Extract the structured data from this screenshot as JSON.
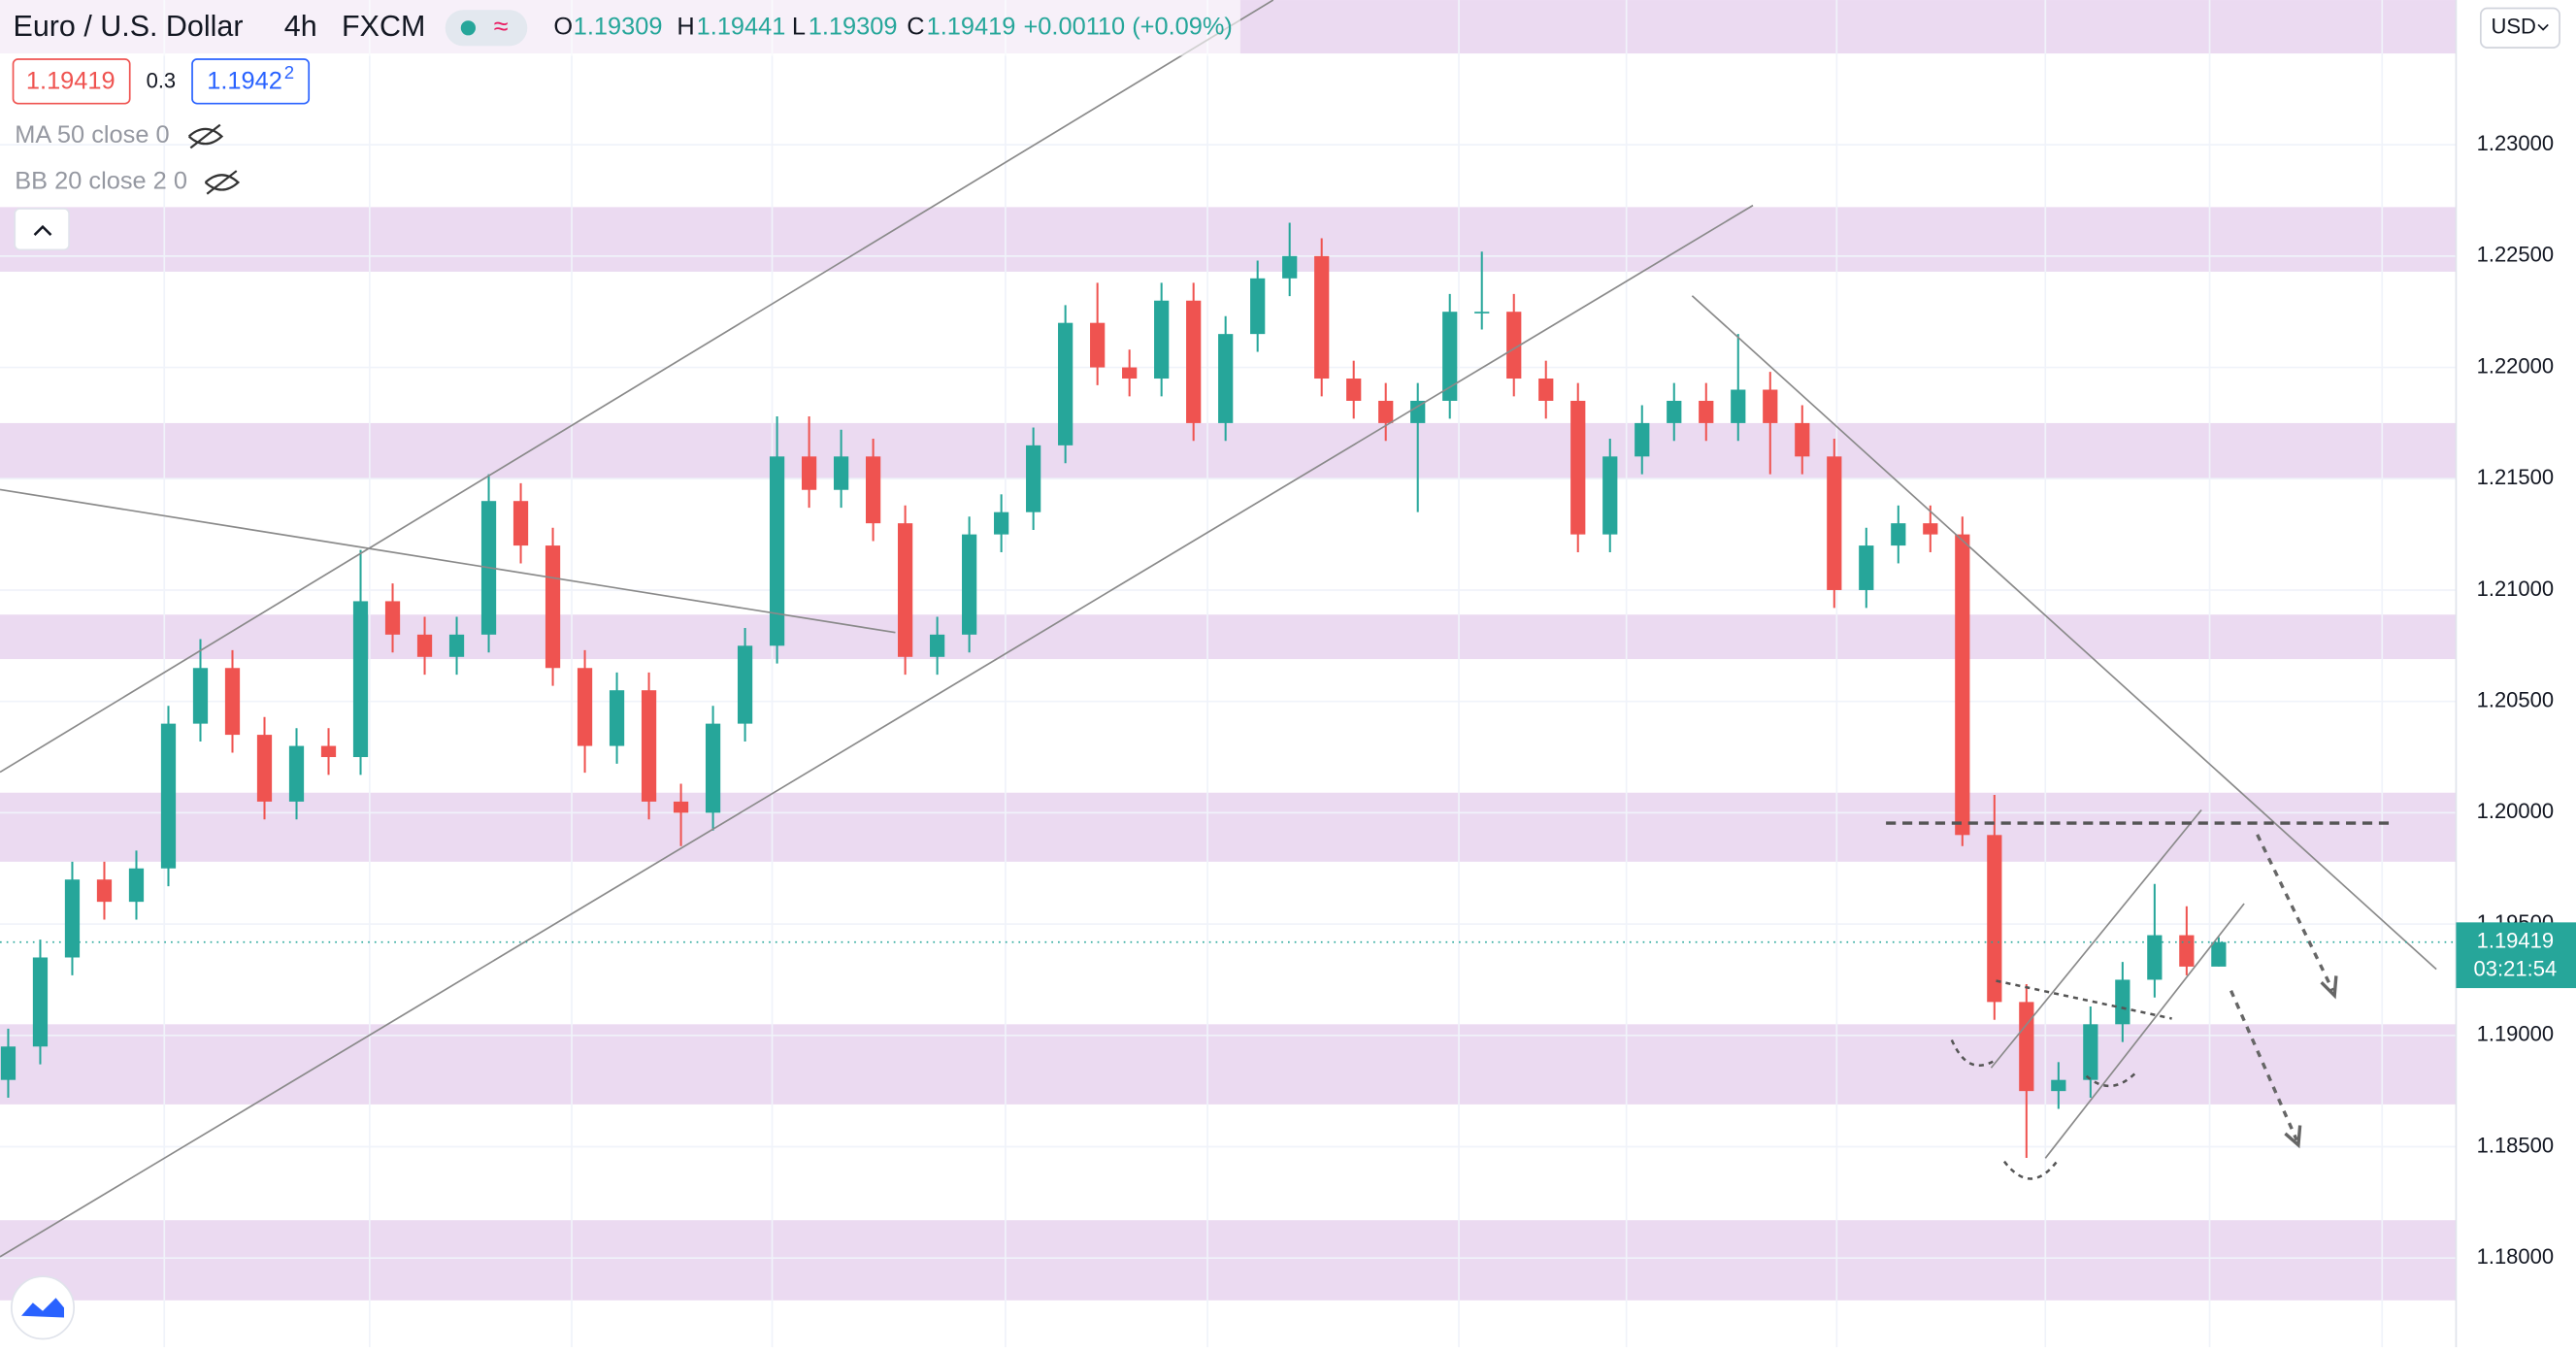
{
  "header": {
    "symbol": "Euro / U.S. Dollar",
    "interval": "4h",
    "source": "FXCM",
    "o_label": "O",
    "open": "1.19309",
    "h_label": "H",
    "high": "1.19441",
    "l_label": "L",
    "low": "1.19309",
    "c_label": "C",
    "close": "1.19419",
    "change": "+0.00110 (+0.09%)",
    "bid": "1.19419",
    "spread": "0.3",
    "ask": "1.1942",
    "ask_pip": "2",
    "indicators": [
      "MA 50 close 0",
      "BB 20 close 2 0"
    ],
    "currency": "USD"
  },
  "chart_data": {
    "type": "candlestick",
    "ylim": [
      1.176,
      1.2365
    ],
    "yticks": [
      {
        "value": 1.18,
        "label": "1.18000"
      },
      {
        "value": 1.185,
        "label": "1.18500"
      },
      {
        "value": 1.19,
        "label": "1.19000"
      },
      {
        "value": 1.195,
        "label": "1.19500"
      },
      {
        "value": 1.2,
        "label": "1.20000"
      },
      {
        "value": 1.205,
        "label": "1.20500"
      },
      {
        "value": 1.21,
        "label": "1.21000"
      },
      {
        "value": 1.215,
        "label": "1.21500"
      },
      {
        "value": 1.22,
        "label": "1.22000"
      },
      {
        "value": 1.225,
        "label": "1.22500"
      },
      {
        "value": 1.23,
        "label": "1.23000"
      }
    ],
    "up_color": "#26a69a",
    "down_color": "#ef5350",
    "zone_color": "#e8d4ee",
    "zones": [
      [
        1.2341,
        1.2365
      ],
      [
        1.2243,
        1.2272
      ],
      [
        1.215,
        1.2175
      ],
      [
        1.2069,
        1.2089
      ],
      [
        1.1978,
        1.2009
      ],
      [
        1.1869,
        1.1905
      ],
      [
        1.1781,
        1.1817
      ]
    ],
    "open": [
      1.188,
      1.1895,
      1.1935,
      1.197,
      1.196,
      1.1975,
      1.204,
      1.2065,
      1.2035,
      1.2005,
      1.203,
      1.2025,
      1.2095,
      1.208,
      1.207,
      1.208,
      1.214,
      1.212,
      1.2065,
      1.203,
      1.2055,
      1.2005,
      1.2,
      1.204,
      1.2075,
      1.216,
      1.2145,
      1.216,
      1.213,
      1.207,
      1.208,
      1.2125,
      1.2135,
      1.2165,
      1.222,
      1.22,
      1.2195,
      1.223,
      1.2175,
      1.2215,
      1.224,
      1.225,
      1.2195,
      1.2185,
      1.2175,
      1.2185,
      1.2225,
      1.2225,
      1.2195,
      1.2185,
      1.2125,
      1.216,
      1.2175,
      1.2185,
      1.2175,
      1.219,
      1.2175,
      1.216,
      1.21,
      1.212,
      1.213,
      1.2125,
      1.199,
      1.1915,
      1.1875,
      1.188,
      1.1905,
      1.1925,
      1.1945,
      1.19309
    ],
    "high": [
      1.1903,
      1.1943,
      1.1978,
      1.1978,
      1.1983,
      1.2048,
      1.2078,
      1.2073,
      1.2043,
      1.2038,
      1.2038,
      1.2118,
      1.2103,
      1.2088,
      1.2088,
      1.2152,
      1.2148,
      1.2128,
      1.2073,
      1.2063,
      1.2063,
      1.2013,
      1.2048,
      1.2083,
      1.2178,
      1.2178,
      1.2172,
      1.2168,
      1.2138,
      1.2088,
      1.2133,
      1.2143,
      1.2173,
      1.2228,
      1.2238,
      1.2208,
      1.2238,
      1.2238,
      1.2223,
      1.2248,
      1.2265,
      1.2258,
      1.2203,
      1.2193,
      1.2193,
      1.2233,
      1.2252,
      1.2233,
      1.2203,
      1.2193,
      1.2168,
      1.2183,
      1.2193,
      1.2193,
      1.2215,
      1.2198,
      1.2183,
      1.2168,
      1.2128,
      1.2138,
      1.2138,
      1.2133,
      1.2008,
      1.1923,
      1.1888,
      1.1913,
      1.1933,
      1.1968,
      1.1958,
      1.19441
    ],
    "low": [
      1.1872,
      1.1887,
      1.1927,
      1.1952,
      1.1952,
      1.1967,
      1.2032,
      1.2027,
      1.1997,
      1.1997,
      1.2017,
      1.2017,
      1.2072,
      1.2062,
      1.2062,
      1.2072,
      1.2112,
      1.2057,
      1.2018,
      1.2022,
      1.1997,
      1.1985,
      1.1992,
      1.2032,
      1.2067,
      1.2137,
      1.2137,
      1.2122,
      1.2062,
      1.2062,
      1.2072,
      1.2117,
      1.2127,
      1.2157,
      1.2192,
      1.2187,
      1.2187,
      1.2167,
      1.2167,
      1.2207,
      1.2232,
      1.2187,
      1.2177,
      1.2167,
      1.2135,
      1.2177,
      1.2217,
      1.2187,
      1.2177,
      1.2117,
      1.2117,
      1.2152,
      1.2167,
      1.2167,
      1.2167,
      1.2152,
      1.2152,
      1.2092,
      1.2092,
      1.2112,
      1.2117,
      1.1985,
      1.1907,
      1.1845,
      1.1867,
      1.1872,
      1.1897,
      1.1917,
      1.1927,
      1.19309
    ],
    "close": [
      1.1895,
      1.1935,
      1.197,
      1.196,
      1.1975,
      1.204,
      1.2065,
      1.2035,
      1.2005,
      1.203,
      1.2025,
      1.2095,
      1.208,
      1.207,
      1.208,
      1.214,
      1.212,
      1.2065,
      1.203,
      1.2055,
      1.2005,
      1.2,
      1.204,
      1.2075,
      1.216,
      1.2145,
      1.216,
      1.213,
      1.207,
      1.208,
      1.2125,
      1.2135,
      1.2165,
      1.222,
      1.22,
      1.2195,
      1.223,
      1.2175,
      1.2215,
      1.224,
      1.225,
      1.2195,
      1.2185,
      1.2175,
      1.2185,
      1.2225,
      1.2225,
      1.2195,
      1.2185,
      1.2125,
      1.216,
      1.2175,
      1.2185,
      1.2175,
      1.219,
      1.2175,
      1.216,
      1.21,
      1.212,
      1.213,
      1.2125,
      1.199,
      1.1915,
      1.1875,
      1.188,
      1.1905,
      1.1925,
      1.1945,
      1.19309,
      1.19419
    ],
    "last_price": 1.19419,
    "last_price_label": "1.19419",
    "countdown": "03:21:54"
  }
}
